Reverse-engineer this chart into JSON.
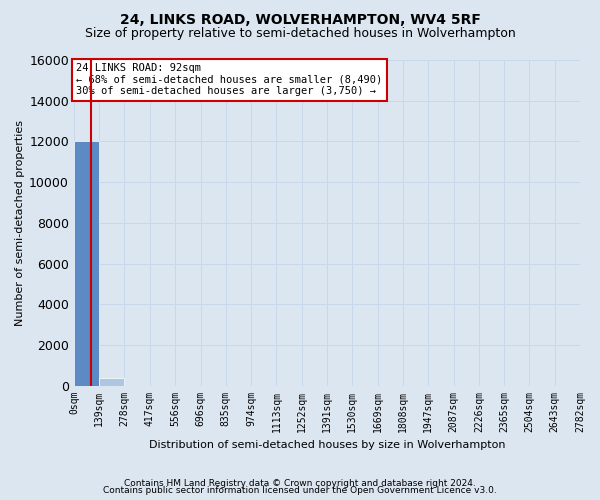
{
  "title": "24, LINKS ROAD, WOLVERHAMPTON, WV4 5RF",
  "subtitle": "Size of property relative to semi-detached houses in Wolverhampton",
  "xlabel": "Distribution of semi-detached houses by size in Wolverhampton",
  "ylabel": "Number of semi-detached properties",
  "footnote1": "Contains HM Land Registry data © Crown copyright and database right 2024.",
  "footnote2": "Contains public sector information licensed under the Open Government Licence v3.0.",
  "annotation_title": "24 LINKS ROAD: 92sqm",
  "annotation_line1": "← 68% of semi-detached houses are smaller (8,490)",
  "annotation_line2": "30% of semi-detached houses are larger (3,750) →",
  "subject_sqm": 92,
  "bin_edges": [
    0,
    139,
    278,
    417,
    556,
    696,
    835,
    974,
    1113,
    1252,
    1391,
    1530,
    1669,
    1808,
    1947,
    2087,
    2226,
    2365,
    2504,
    2643,
    2782
  ],
  "bin_labels": [
    "0sqm",
    "139sqm",
    "278sqm",
    "417sqm",
    "556sqm",
    "696sqm",
    "835sqm",
    "974sqm",
    "1113sqm",
    "1252sqm",
    "1391sqm",
    "1530sqm",
    "1669sqm",
    "1808sqm",
    "1947sqm",
    "2087sqm",
    "2226sqm",
    "2365sqm",
    "2504sqm",
    "2643sqm",
    "2782sqm"
  ],
  "bar_heights": [
    12000,
    380,
    0,
    0,
    0,
    0,
    0,
    0,
    0,
    0,
    0,
    0,
    0,
    0,
    0,
    0,
    0,
    0,
    0,
    0
  ],
  "bar_color_smaller": "#aec6e0",
  "bar_color_subject": "#5b8ac4",
  "bar_color_larger": "#aec6e0",
  "ylim": [
    0,
    16000
  ],
  "yticks": [
    0,
    2000,
    4000,
    6000,
    8000,
    10000,
    12000,
    14000,
    16000
  ],
  "grid_color": "#c8d8ea",
  "bg_color": "#dce6f1",
  "annotation_box_facecolor": "#ffffff",
  "annotation_box_edgecolor": "#cc0000",
  "red_line_x": 92,
  "title_fontsize": 10,
  "subtitle_fontsize": 9,
  "ylabel_fontsize": 8,
  "xlabel_fontsize": 8,
  "ytick_fontsize": 9,
  "xtick_fontsize": 7,
  "annot_fontsize": 7.5,
  "footnote_fontsize": 6.5
}
